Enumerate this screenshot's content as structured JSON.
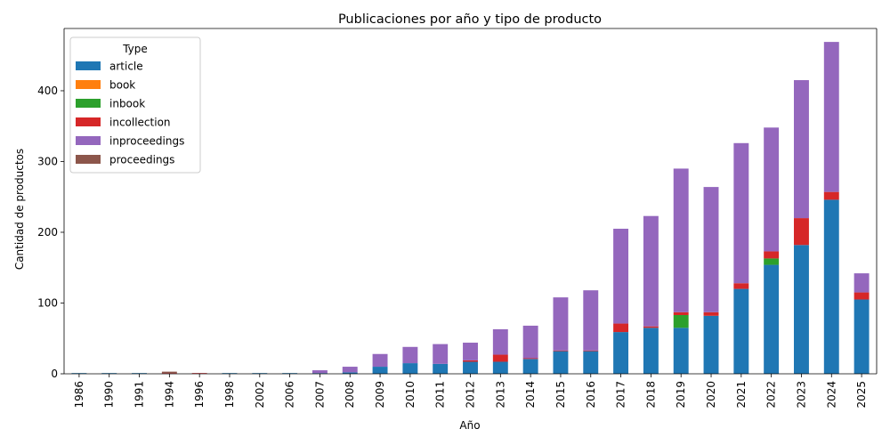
{
  "chart_data": {
    "type": "bar",
    "stacked": true,
    "title": "Publicaciones por año y tipo de producto",
    "xlabel": "Año",
    "ylabel": "Cantidad de productos",
    "ylim": [
      0,
      488
    ],
    "yticks": [
      0,
      100,
      200,
      300,
      400
    ],
    "grid": false,
    "legend": {
      "title": "Type",
      "placement": "top-left"
    },
    "categories": [
      "1986",
      "1990",
      "1991",
      "1994",
      "1996",
      "1998",
      "2002",
      "2006",
      "2007",
      "2008",
      "2009",
      "2010",
      "2011",
      "2012",
      "2013",
      "2014",
      "2015",
      "2016",
      "2017",
      "2018",
      "2019",
      "2020",
      "2021",
      "2022",
      "2023",
      "2024",
      "2025"
    ],
    "series": [
      {
        "name": "article",
        "color": "#1f77b4",
        "values": [
          1,
          1,
          1,
          0,
          0,
          1,
          1,
          1,
          1,
          2,
          10,
          15,
          14,
          17,
          17,
          21,
          32,
          32,
          59,
          65,
          65,
          82,
          120,
          154,
          182,
          246,
          105
        ]
      },
      {
        "name": "book",
        "color": "#ff7f0e",
        "values": [
          0,
          0,
          0,
          0,
          0,
          0,
          0,
          0,
          0,
          0,
          0,
          0,
          0,
          0,
          0,
          0,
          0,
          0,
          0,
          0,
          0,
          0,
          0,
          0,
          0,
          0,
          0
        ]
      },
      {
        "name": "inbook",
        "color": "#2ca02c",
        "values": [
          0,
          0,
          0,
          0,
          0,
          0,
          0,
          0,
          0,
          0,
          0,
          0,
          0,
          0,
          0,
          0,
          0,
          0,
          0,
          0,
          18,
          0,
          0,
          9,
          0,
          0,
          0
        ]
      },
      {
        "name": "incollection",
        "color": "#d62728",
        "values": [
          0,
          0,
          0,
          1,
          1,
          0,
          0,
          0,
          0,
          0,
          0,
          0,
          0,
          2,
          10,
          1,
          1,
          1,
          12,
          2,
          4,
          5,
          8,
          10,
          38,
          11,
          10
        ]
      },
      {
        "name": "inproceedings",
        "color": "#9467bd",
        "values": [
          0,
          0,
          0,
          0,
          0,
          0,
          0,
          0,
          4,
          8,
          18,
          23,
          28,
          25,
          36,
          46,
          75,
          85,
          134,
          156,
          203,
          177,
          198,
          175,
          195,
          212,
          27
        ]
      },
      {
        "name": "proceedings",
        "color": "#8c564b",
        "values": [
          0,
          0,
          0,
          2,
          0,
          0,
          0,
          0,
          0,
          0,
          0,
          0,
          0,
          0,
          0,
          0,
          0,
          0,
          0,
          0,
          0,
          0,
          0,
          0,
          0,
          0,
          0
        ]
      }
    ]
  }
}
